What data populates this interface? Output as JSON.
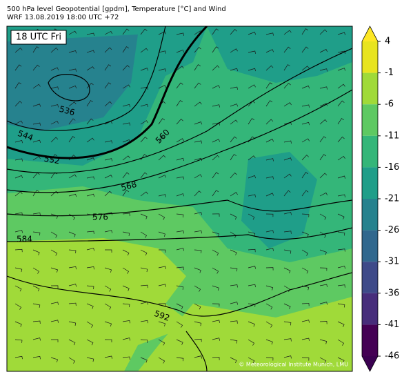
{
  "header": {
    "line1": "500 hPa level Geopotential [gpdm], Temperature [°C] and Wind",
    "line2": "WRF 13.08.2019 18:00 UTC +72"
  },
  "map": {
    "time_label": "18 UTC Fri",
    "contour_labels": [
      "536",
      "544",
      "552",
      "560",
      "568",
      "576",
      "584",
      "592"
    ],
    "credit": "© Meteorological Institute Munich, LMU"
  },
  "colorbar": {
    "ticks": [
      4,
      -1,
      -6,
      -11,
      -16,
      -21,
      -26,
      -31,
      -36,
      -41,
      -46
    ],
    "colors": [
      "#e8e41f",
      "#a0da39",
      "#5ec962",
      "#34b679",
      "#1f9e89",
      "#26828e",
      "#31688e",
      "#3e4a89",
      "#472d7b",
      "#440154"
    ],
    "over_color": "#fde725",
    "under_color": "#3b0151"
  }
}
